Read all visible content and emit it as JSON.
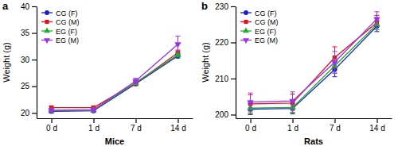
{
  "chart_data": [
    {
      "type": "line",
      "title": "a",
      "x_label": "Mice",
      "y_label": "Weight (g)",
      "categories": [
        "0 d",
        "1 d",
        "7 d",
        "14 d"
      ],
      "ylim": [
        19,
        40
      ],
      "yticks": [
        20,
        25,
        30,
        35,
        40
      ],
      "legend": "top-left",
      "series": [
        {
          "name": "CG (F)",
          "color": "#1c1cd6",
          "marker": "circle",
          "values": [
            20.3,
            20.4,
            25.5,
            30.7
          ],
          "errors": [
            0.3,
            0.3,
            0.4,
            0.4
          ]
        },
        {
          "name": "CG (M)",
          "color": "#e3101e",
          "marker": "square",
          "values": [
            21.0,
            21.0,
            25.6,
            31.3
          ],
          "errors": [
            0.3,
            0.3,
            0.4,
            0.5
          ]
        },
        {
          "name": "EG (F)",
          "color": "#1fae2a",
          "marker": "triangle",
          "values": [
            20.4,
            20.5,
            25.7,
            30.9
          ],
          "errors": [
            0.3,
            0.3,
            0.4,
            0.4
          ]
        },
        {
          "name": "EG (M)",
          "color": "#9b30e8",
          "marker": "triangle-down",
          "values": [
            20.5,
            20.6,
            26.0,
            32.9
          ],
          "errors": [
            0.3,
            0.3,
            0.5,
            1.5
          ]
        }
      ]
    },
    {
      "type": "line",
      "title": "b",
      "x_label": "Rats",
      "y_label": "Weight (g)",
      "categories": [
        "0 d",
        "1 d",
        "7 d",
        "14 d"
      ],
      "ylim": [
        199,
        230
      ],
      "yticks": [
        200,
        210,
        220,
        230
      ],
      "legend": "top-left",
      "series": [
        {
          "name": "CG (F)",
          "color": "#1c1cd6",
          "marker": "circle",
          "values": [
            201.5,
            201.7,
            212.5,
            224.5
          ],
          "errors": [
            1.5,
            1.5,
            2.0,
            1.5
          ]
        },
        {
          "name": "CG (M)",
          "color": "#e3101e",
          "marker": "square",
          "values": [
            203.0,
            203.2,
            215.8,
            225.5
          ],
          "errors": [
            2.5,
            2.5,
            3.0,
            2.0
          ]
        },
        {
          "name": "EG (F)",
          "color": "#1fae2a",
          "marker": "triangle",
          "values": [
            201.8,
            202.0,
            213.5,
            225.0
          ],
          "errors": [
            1.5,
            1.5,
            2.0,
            1.5
          ]
        },
        {
          "name": "EG (M)",
          "color": "#9b30e8",
          "marker": "triangle-down",
          "values": [
            203.5,
            203.8,
            214.5,
            226.5
          ],
          "errors": [
            2.5,
            2.5,
            3.0,
            2.0
          ]
        }
      ]
    }
  ]
}
